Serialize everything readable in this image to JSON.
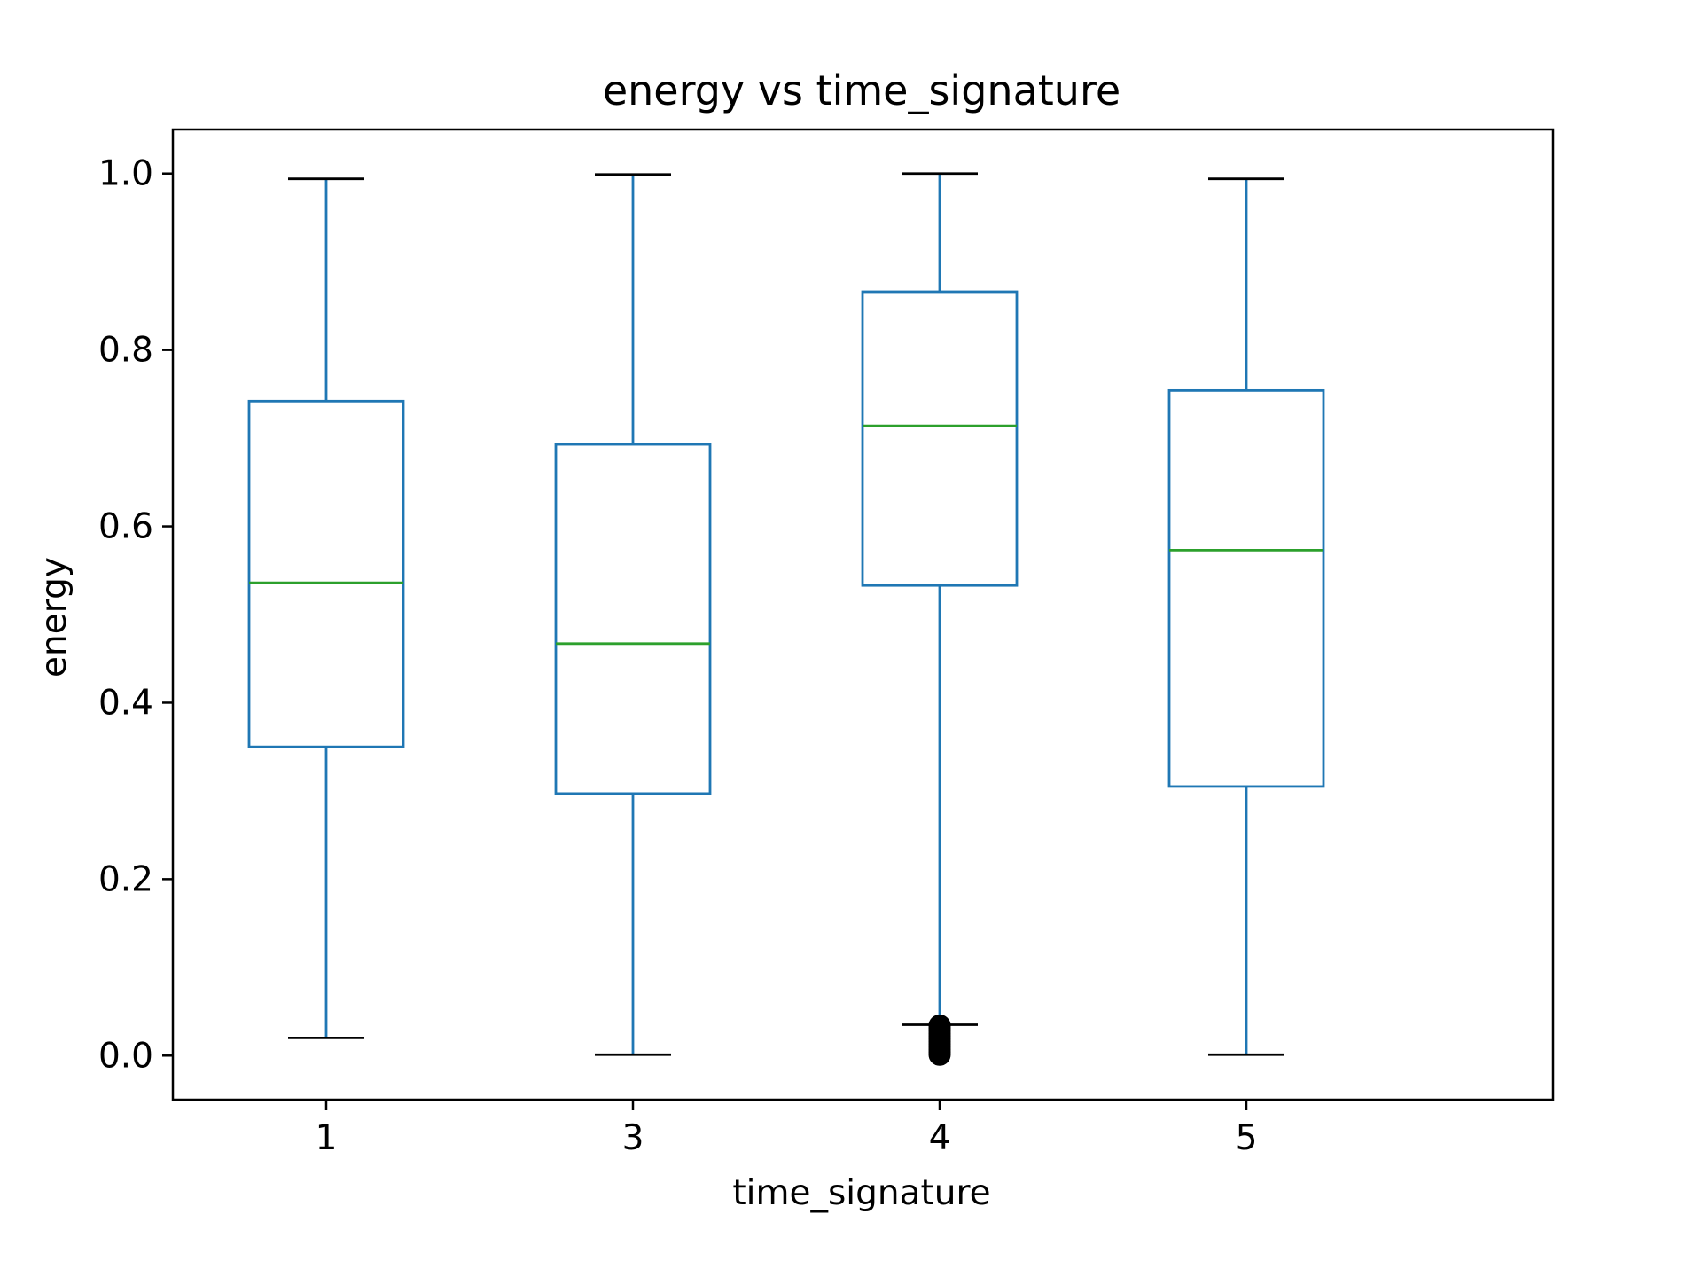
{
  "chart_data": {
    "type": "box",
    "title": "energy vs time_signature",
    "xlabel": "time_signature",
    "ylabel": "energy",
    "ylim": [
      -0.05,
      1.05
    ],
    "yticks": [
      "0.0",
      "0.2",
      "0.4",
      "0.6",
      "0.8",
      "1.0"
    ],
    "categories": [
      "1",
      "3",
      "4",
      "5"
    ],
    "boxes": [
      {
        "category": "1",
        "whisker_low": 0.02,
        "q1": 0.35,
        "median": 0.536,
        "q3": 0.742,
        "whisker_high": 0.994,
        "outliers": []
      },
      {
        "category": "3",
        "whisker_low": 0.001,
        "q1": 0.297,
        "median": 0.467,
        "q3": 0.693,
        "whisker_high": 0.999,
        "outliers": []
      },
      {
        "category": "4",
        "whisker_low": 0.035,
        "q1": 0.533,
        "median": 0.714,
        "q3": 0.866,
        "whisker_high": 1.0,
        "outliers": [
          0.034,
          0.031,
          0.028,
          0.025,
          0.022,
          0.019,
          0.016,
          0.013,
          0.01,
          0.007,
          0.004,
          0.001
        ]
      },
      {
        "category": "5",
        "whisker_low": 0.001,
        "q1": 0.305,
        "median": 0.573,
        "q3": 0.754,
        "whisker_high": 0.994,
        "outliers": []
      }
    ],
    "grid": false,
    "colors": {
      "box": "#1f77b4",
      "median": "#2ca02c",
      "outlier": "#000000"
    }
  }
}
